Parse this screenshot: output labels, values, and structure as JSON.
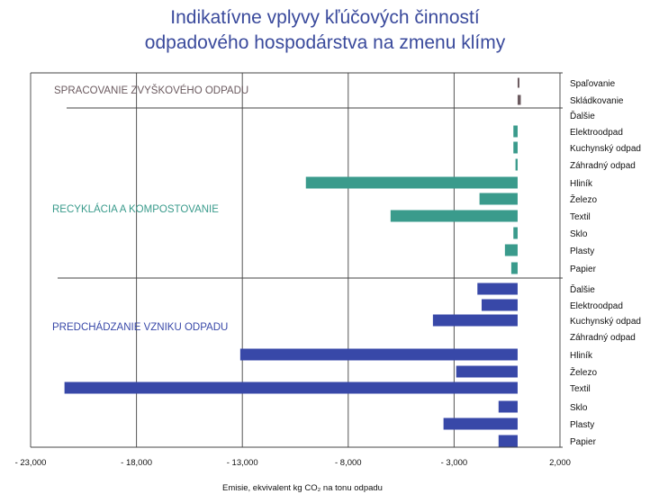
{
  "title_line1": "Indikatívne vplyvy kľúčových činností",
  "title_line2": "odpadového hospodárstva na zmenu klímy",
  "chart_data": {
    "type": "bar",
    "orientation": "horizontal",
    "xlabel": "Emisie, ekvivalent kg CO₂ na tonu odpadu",
    "xlim": [
      -23000,
      2000
    ],
    "xticks": [
      -23000,
      -18000,
      -13000,
      -8000,
      -3000,
      2000
    ],
    "xtick_labels": [
      "- 23,000",
      "- 18,000",
      "- 13,000",
      "- 8,000",
      "- 3,000",
      "2,000"
    ],
    "groups": [
      {
        "name": "SPRACOVANIE ZVYŠKOVÉHO ODPADU",
        "color": "#6b5a5f",
        "categories": [
          "Spaľovanie",
          "Skládkovanie"
        ],
        "values": [
          50,
          150
        ]
      },
      {
        "name": "RECYKLÁCIA A KOMPOSTOVANIE",
        "color": "#3a9b8c",
        "categories": [
          "Ďalšie",
          "Elektroodpad",
          "Kuchynský odpad",
          "Záhradný odpad",
          "Hliník",
          "Železo",
          "Textil",
          "Sklo",
          "Plasty",
          "Papier"
        ],
        "values": [
          0,
          -200,
          -200,
          -100,
          -10000,
          -1800,
          -6000,
          -200,
          -600,
          -300
        ]
      },
      {
        "name": "PREDCHÁDZANIE VZNIKU ODPADU",
        "color": "#3848a8",
        "categories": [
          "Ďalšie",
          "Elektroodpad",
          "Kuchynský odpad",
          "Záhradný odpad",
          "Hliník",
          "Železo",
          "Textil",
          "Sklo",
          "Plasty",
          "Papier"
        ],
        "values": [
          -1900,
          -1700,
          -4000,
          0,
          -13100,
          -2900,
          -21400,
          -900,
          -3500,
          -900
        ]
      }
    ]
  }
}
